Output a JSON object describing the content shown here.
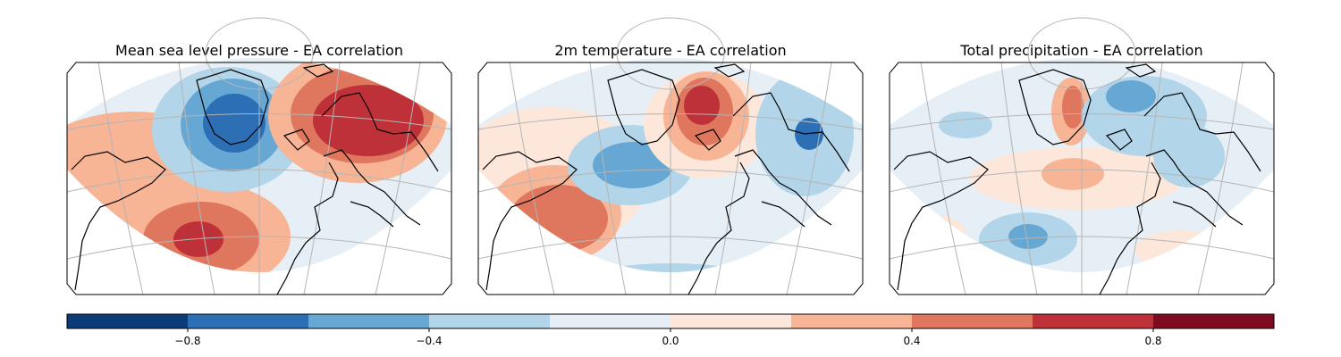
{
  "figure": {
    "panels": [
      {
        "id": "mslp",
        "title": "Mean sea level pressure - EA correlation"
      },
      {
        "id": "t2m",
        "title": "2m temperature - EA correlation"
      },
      {
        "id": "tp",
        "title": "Total precipitation - EA correlation"
      }
    ],
    "colorbar": {
      "levels": [
        -1.0,
        -0.8,
        -0.6,
        -0.4,
        -0.2,
        0.0,
        0.2,
        0.4,
        0.6,
        0.8,
        1.0
      ],
      "colors": [
        "#0b3c77",
        "#2c6fb5",
        "#67a7d3",
        "#b3d5e9",
        "#e6eff6",
        "#fde7da",
        "#f7b596",
        "#df765e",
        "#bf3138",
        "#7f0b22"
      ],
      "tick_values": [
        -0.8,
        -0.4,
        0.0,
        0.4,
        0.8
      ],
      "tick_labels": [
        "−0.8",
        "−0.4",
        "0.0",
        "0.4",
        "0.8"
      ]
    },
    "map_colors": {
      "outside": "#ffffff",
      "coast": "#000000",
      "grid": "#b5b5b5",
      "border": "#000000"
    }
  }
}
